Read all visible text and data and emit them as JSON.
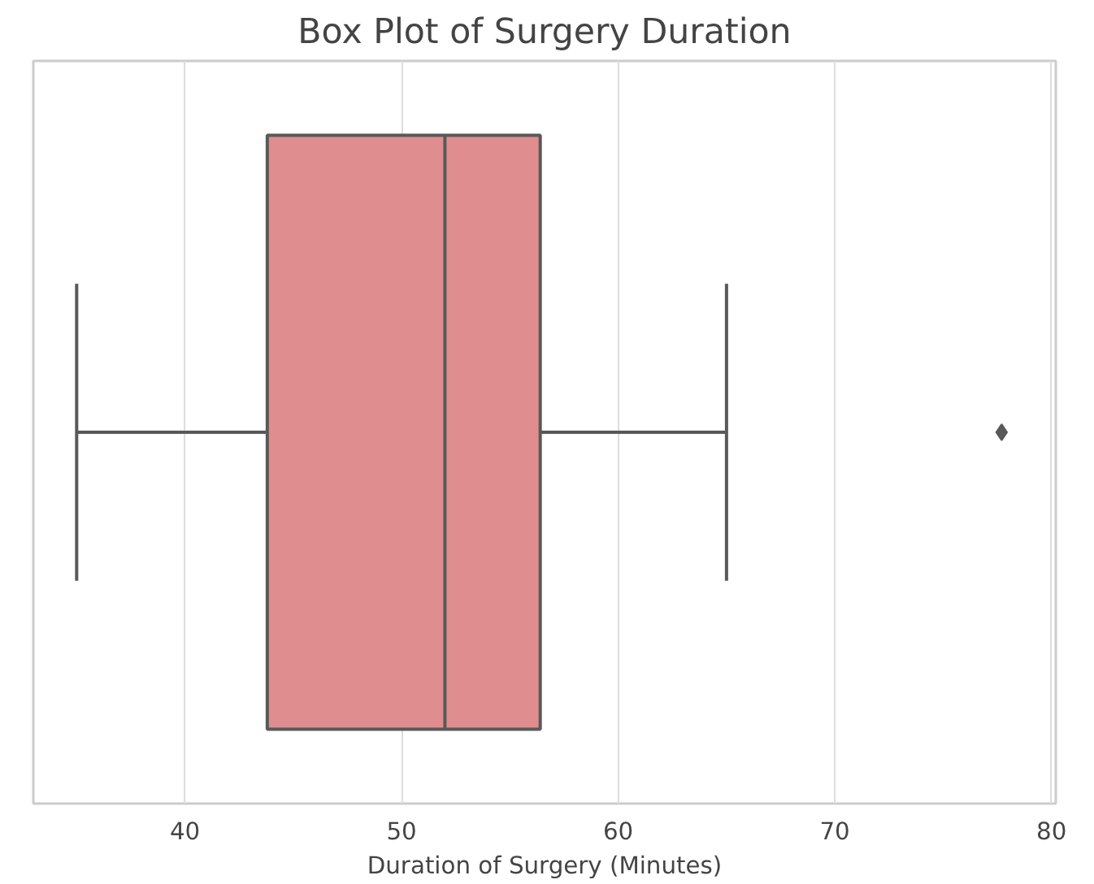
{
  "chart_data": {
    "type": "box",
    "orientation": "horizontal",
    "title": "Box Plot of Surgery Duration",
    "xlabel": "Duration of Surgery (Minutes)",
    "categories": [
      null
    ],
    "color": "#e08d8f",
    "boxes": [
      {
        "low": 35,
        "q1": 43.8,
        "median": 52,
        "q3": 56.4,
        "high": 65,
        "outliers": [
          77.7
        ]
      }
    ],
    "xlim": [
      33,
      80.2
    ],
    "xticks": [
      40,
      50,
      60,
      70,
      80
    ],
    "grid": "x",
    "tick_labels": "x"
  }
}
